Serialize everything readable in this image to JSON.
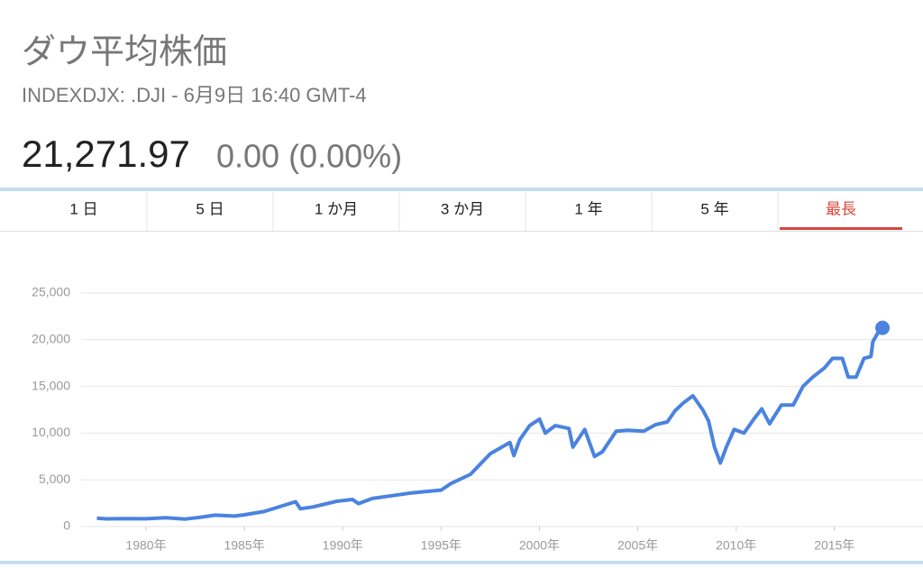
{
  "header": {
    "title": "ダウ平均株価",
    "subtitle": "INDEXDJX: .DJI - 6月9日 16:40 GMT-4",
    "price": "21,271.97",
    "change": "0.00 (0.00%)"
  },
  "tabs": {
    "labels": [
      "1 日",
      "5 日",
      "1 か月",
      "3 か月",
      "1 年",
      "5 年",
      "最長"
    ],
    "active": 6
  },
  "chart_data": {
    "type": "line",
    "color": "#4a83e0",
    "grid": true,
    "x": [
      1977.5,
      1978,
      1979,
      1980,
      1981,
      1982,
      1982.8,
      1983.5,
      1984.5,
      1985,
      1986,
      1987.6,
      1987.85,
      1988.5,
      1989.7,
      1990.5,
      1990.8,
      1991.5,
      1992.5,
      1993.5,
      1994.5,
      1995,
      1995.5,
      1996.5,
      1997.5,
      1998.5,
      1998.7,
      1999,
      1999.5,
      2000,
      2000.3,
      2000.8,
      2001.5,
      2001.7,
      2002.3,
      2002.8,
      2003.2,
      2003.9,
      2004.5,
      2005.3,
      2005.9,
      2006.5,
      2006.9,
      2007.3,
      2007.8,
      2008.3,
      2008.6,
      2008.9,
      2009.2,
      2009.5,
      2009.9,
      2010.4,
      2010.9,
      2011.3,
      2011.7,
      2012.3,
      2012.9,
      2013.4,
      2013.9,
      2014.5,
      2014.9,
      2015.4,
      2015.7,
      2016.1,
      2016.5,
      2016.85,
      2016.95,
      2017.2,
      2017.44
    ],
    "values": [
      900,
      820,
      850,
      830,
      950,
      800,
      1000,
      1220,
      1120,
      1250,
      1600,
      2650,
      1900,
      2100,
      2700,
      2900,
      2450,
      3000,
      3300,
      3600,
      3800,
      3900,
      4600,
      5600,
      7800,
      9000,
      7600,
      9300,
      10800,
      11500,
      10000,
      10800,
      10500,
      8500,
      10400,
      7500,
      8000,
      10200,
      10300,
      10200,
      10900,
      11200,
      12400,
      13200,
      14000,
      12500,
      11300,
      8500,
      6800,
      8500,
      10400,
      10000,
      11500,
      12600,
      11000,
      13000,
      13000,
      15000,
      16000,
      17000,
      18000,
      18000,
      16000,
      16000,
      18000,
      18200,
      19800,
      20700,
      21271.97
    ],
    "xlim": [
      1976.7,
      2019.5
    ],
    "ylim": [
      0,
      25000
    ],
    "xticks": [
      {
        "value": 1980,
        "label": "1980年"
      },
      {
        "value": 1985,
        "label": "1985年"
      },
      {
        "value": 1990,
        "label": "1990年"
      },
      {
        "value": 1995,
        "label": "1995年"
      },
      {
        "value": 2000,
        "label": "2000年"
      },
      {
        "value": 2005,
        "label": "2005年"
      },
      {
        "value": 2010,
        "label": "2010年"
      },
      {
        "value": 2015,
        "label": "2015年"
      }
    ],
    "yticks": [
      0,
      {
        "value": 5000,
        "label": "5,000"
      },
      {
        "value": 10000,
        "label": "10,000"
      },
      {
        "value": 15000,
        "label": "15,000"
      },
      {
        "value": 20000,
        "label": "20,000"
      },
      {
        "value": 25000,
        "label": "25,000"
      }
    ]
  }
}
